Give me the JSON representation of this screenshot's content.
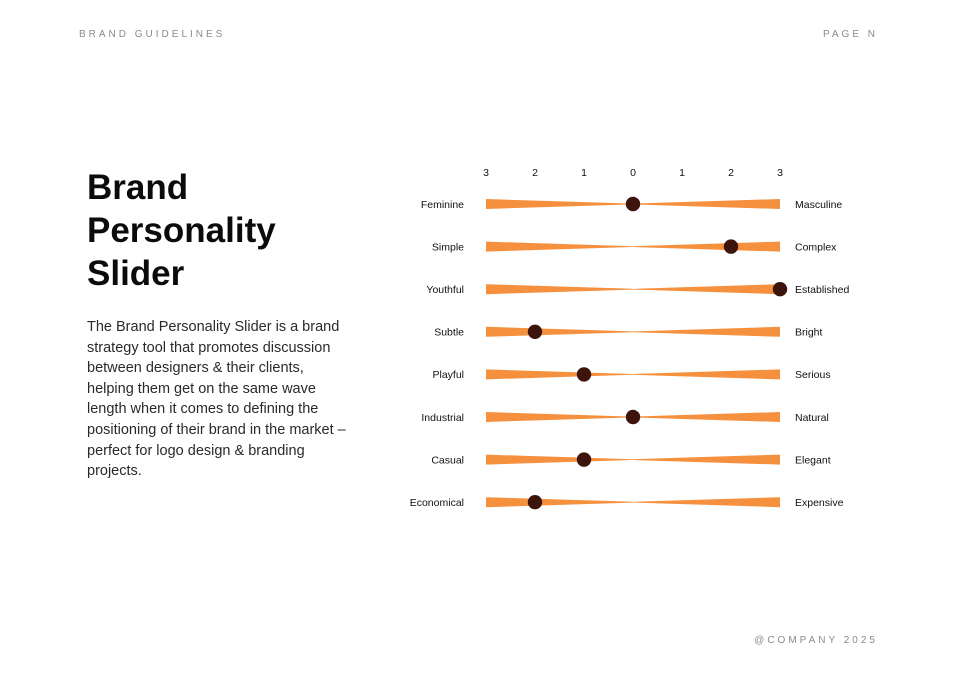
{
  "header": {
    "left": "BRAND GUIDELINES",
    "right": "PAGE N"
  },
  "title_lines": [
    "Brand",
    "Personality",
    "Slider"
  ],
  "description": "The Brand Personality Slider is a brand strategy tool that promotes discussion between designers & their clients, helping them get on the same wave length when it comes to defining the positioning of their brand in the market – perfect for logo design & branding projects.",
  "footer": "@COMPANY 2025",
  "colors": {
    "bar": "#f5913e",
    "knob": "#3d140c",
    "text": "#111111"
  },
  "chart_data": {
    "type": "slider-scale",
    "scale_labels": [
      "3",
      "2",
      "1",
      "0",
      "1",
      "2",
      "3"
    ],
    "scale_range": [
      -3,
      3
    ],
    "rows": [
      {
        "left": "Feminine",
        "right": "Masculine",
        "value": 0
      },
      {
        "left": "Simple",
        "right": "Complex",
        "value": 2
      },
      {
        "left": "Youthful",
        "right": "Established",
        "value": 3
      },
      {
        "left": "Subtle",
        "right": "Bright",
        "value": -2
      },
      {
        "left": "Playful",
        "right": "Serious",
        "value": -1
      },
      {
        "left": "Industrial",
        "right": "Natural",
        "value": 0
      },
      {
        "left": "Casual",
        "right": "Elegant",
        "value": -1
      },
      {
        "left": "Economical",
        "right": "Expensive",
        "value": -2
      }
    ]
  }
}
